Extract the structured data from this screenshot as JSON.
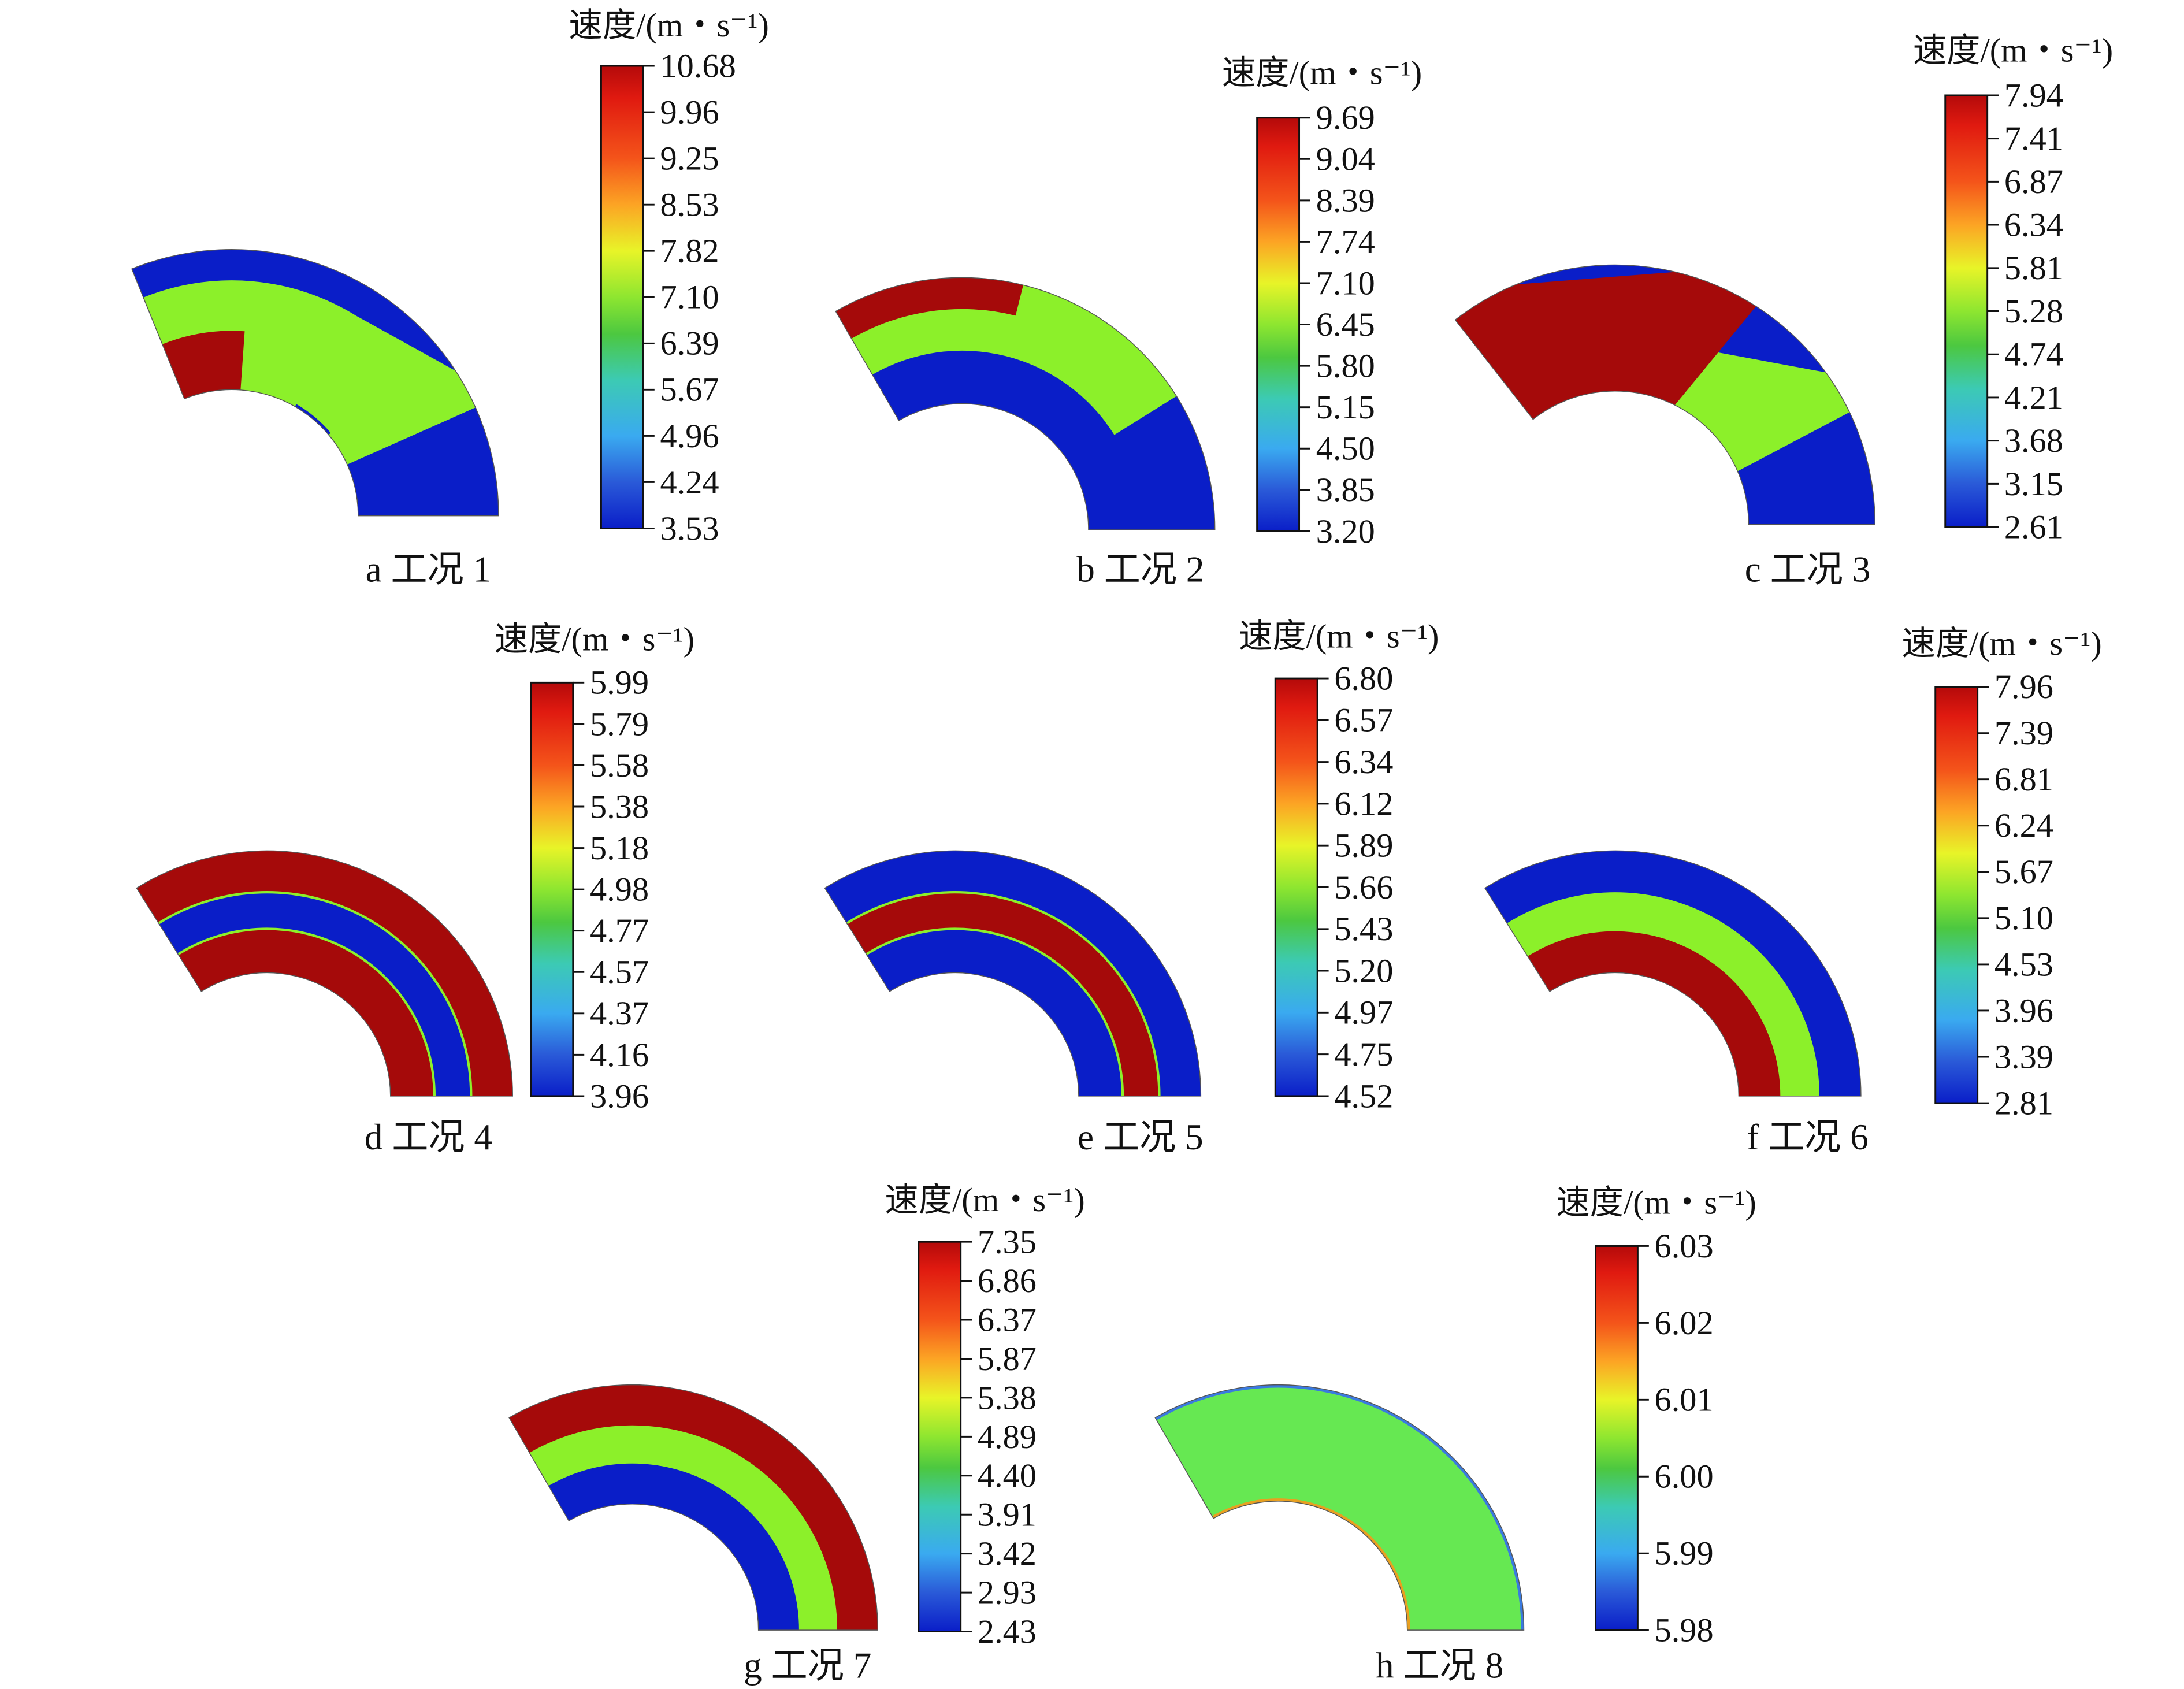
{
  "legend_title": "速度/(m・s⁻¹)",
  "case_word": "工况",
  "colors": {
    "blue": "#0a1ec8",
    "green": "#8cf02a",
    "red": "#a50a0a",
    "mid_green": "#66e852"
  },
  "panels": [
    {
      "letter": "a",
      "number": "1",
      "ticks": [
        "10.68",
        "9.96",
        "9.25",
        "8.53",
        "7.82",
        "7.10",
        "6.39",
        "5.67",
        "4.96",
        "4.24",
        "3.53"
      ],
      "fields": [
        {
          "radial": [
            "inner",
            "mid"
          ],
          "angular": [
            "sector_end",
            "boundary"
          ],
          "color": "red"
        },
        {
          "radial": [
            "inner",
            "mid"
          ],
          "angular": [
            "boundary",
            "sector_start"
          ],
          "color": "green"
        },
        {
          "radial": [
            "mid",
            "mid2"
          ],
          "angular": [
            "sector_end",
            "boundary"
          ],
          "color": "green"
        }
      ]
    },
    {
      "letter": "b",
      "number": "2",
      "ticks": [
        "9.69",
        "9.04",
        "8.39",
        "7.74",
        "7.10",
        "6.45",
        "5.80",
        "5.15",
        "4.50",
        "3.85",
        "3.20"
      ],
      "fields": []
    },
    {
      "letter": "c",
      "number": "3",
      "ticks": [
        "7.94",
        "7.41",
        "6.87",
        "6.34",
        "5.81",
        "5.28",
        "4.74",
        "4.21",
        "3.68",
        "3.15",
        "2.61"
      ],
      "fields": []
    },
    {
      "letter": "d",
      "number": "4",
      "ticks": [
        "5.99",
        "5.79",
        "5.58",
        "5.38",
        "5.18",
        "4.98",
        "4.77",
        "4.57",
        "4.37",
        "4.16",
        "3.96"
      ],
      "fields": []
    },
    {
      "letter": "e",
      "number": "5",
      "ticks": [
        "6.80",
        "6.57",
        "6.34",
        "6.12",
        "5.89",
        "5.66",
        "5.43",
        "5.20",
        "4.97",
        "4.75",
        "4.52"
      ],
      "fields": []
    },
    {
      "letter": "f",
      "number": "6",
      "ticks": [
        "7.96",
        "7.39",
        "6.81",
        "6.24",
        "5.67",
        "5.10",
        "4.53",
        "3.96",
        "3.39",
        "2.81"
      ],
      "fields": []
    },
    {
      "letter": "g",
      "number": "7",
      "ticks": [
        "7.35",
        "6.86",
        "6.37",
        "5.87",
        "5.38",
        "4.89",
        "4.40",
        "3.91",
        "3.42",
        "2.93",
        "2.43"
      ],
      "fields": []
    },
    {
      "letter": "h",
      "number": "8",
      "ticks": [
        "6.03",
        "6.02",
        "6.01",
        "6.00",
        "5.99",
        "5.98"
      ],
      "fields": []
    }
  ]
}
